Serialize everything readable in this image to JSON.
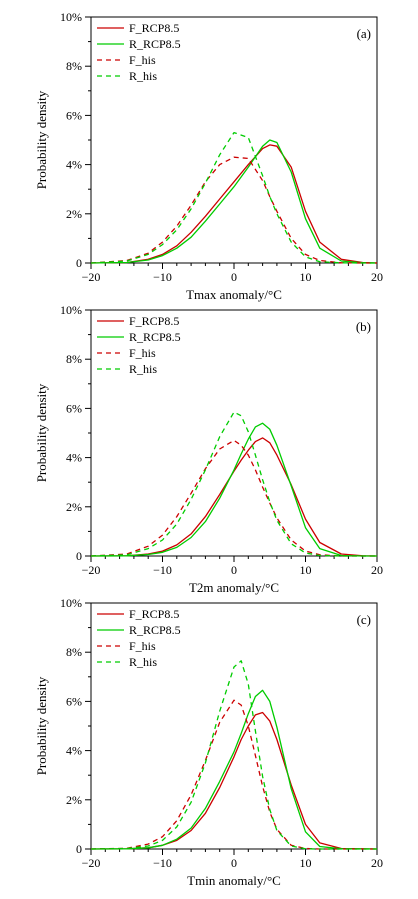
{
  "chart_data": [
    {
      "type": "line",
      "panel_label": "(a)",
      "xlabel": "Tmax anomaly/°C",
      "ylabel": "Probability density",
      "xlim": [
        -20,
        20
      ],
      "ylim": [
        0,
        10
      ],
      "x_ticks": [
        -20,
        -10,
        0,
        10,
        20
      ],
      "x_tick_labels": [
        "−20",
        "−10",
        "0",
        "10",
        "20"
      ],
      "y_ticks": [
        0,
        2,
        4,
        6,
        8,
        10
      ],
      "y_tick_labels": [
        "0",
        "2%",
        "4%",
        "6%",
        "8%",
        "10%"
      ],
      "legend_position": "top-left",
      "x": [
        -20,
        -15,
        -12,
        -10,
        -8,
        -6,
        -4,
        -2,
        0,
        2,
        4,
        5,
        6,
        8,
        10,
        12,
        15,
        18,
        20
      ],
      "series": [
        {
          "name": "F_RCP8.5",
          "color": "#cc0000",
          "dash": "solid",
          "values": [
            0,
            0.02,
            0.15,
            0.35,
            0.7,
            1.25,
            1.9,
            2.6,
            3.3,
            4.0,
            4.65,
            4.8,
            4.75,
            3.9,
            2.1,
            0.85,
            0.15,
            0.02,
            0
          ]
        },
        {
          "name": "R_RCP8.5",
          "color": "#00cc00",
          "dash": "solid",
          "values": [
            0,
            0.02,
            0.12,
            0.3,
            0.6,
            1.05,
            1.7,
            2.4,
            3.1,
            3.9,
            4.75,
            5.0,
            4.9,
            3.7,
            1.8,
            0.6,
            0.08,
            0.01,
            0
          ]
        },
        {
          "name": "F_his",
          "color": "#cc0000",
          "dash": "dashed",
          "values": [
            0,
            0.1,
            0.4,
            0.85,
            1.5,
            2.35,
            3.3,
            4.0,
            4.3,
            4.25,
            3.35,
            2.7,
            2.1,
            1.0,
            0.35,
            0.1,
            0.01,
            0,
            0
          ]
        },
        {
          "name": "R_his",
          "color": "#00cc00",
          "dash": "dashed",
          "values": [
            0,
            0.08,
            0.35,
            0.75,
            1.35,
            2.2,
            3.25,
            4.4,
            5.3,
            5.1,
            3.55,
            2.7,
            2.0,
            0.85,
            0.25,
            0.05,
            0.01,
            0,
            0
          ]
        }
      ]
    },
    {
      "type": "line",
      "panel_label": "(b)",
      "xlabel": "T2m anomaly/°C",
      "ylabel": "Probability density",
      "xlim": [
        -20,
        20
      ],
      "ylim": [
        0,
        10
      ],
      "x_ticks": [
        -20,
        -10,
        0,
        10,
        20
      ],
      "x_tick_labels": [
        "−20",
        "−10",
        "0",
        "10",
        "20"
      ],
      "y_ticks": [
        0,
        2,
        4,
        6,
        8,
        10
      ],
      "y_tick_labels": [
        "0",
        "2%",
        "4%",
        "6%",
        "8%",
        "10%"
      ],
      "legend_position": "top-left",
      "x": [
        -20,
        -15,
        -12,
        -10,
        -8,
        -6,
        -4,
        -2,
        0,
        1,
        2,
        3,
        4,
        5,
        6,
        8,
        10,
        12,
        15,
        18,
        20
      ],
      "series": [
        {
          "name": "F_RCP8.5",
          "color": "#cc0000",
          "dash": "solid",
          "values": [
            0,
            0.01,
            0.08,
            0.2,
            0.45,
            0.9,
            1.6,
            2.5,
            3.45,
            3.9,
            4.3,
            4.65,
            4.8,
            4.6,
            4.1,
            2.9,
            1.5,
            0.55,
            0.08,
            0.01,
            0
          ]
        },
        {
          "name": "R_RCP8.5",
          "color": "#00cc00",
          "dash": "solid",
          "values": [
            0,
            0.01,
            0.06,
            0.15,
            0.35,
            0.75,
            1.4,
            2.35,
            3.5,
            4.15,
            4.75,
            5.25,
            5.4,
            5.15,
            4.5,
            2.85,
            1.15,
            0.3,
            0.02,
            0,
            0
          ]
        },
        {
          "name": "F_his",
          "color": "#cc0000",
          "dash": "dashed",
          "values": [
            0,
            0.08,
            0.4,
            0.85,
            1.6,
            2.55,
            3.55,
            4.35,
            4.7,
            4.5,
            4.1,
            3.5,
            2.8,
            2.15,
            1.55,
            0.65,
            0.2,
            0.05,
            0,
            0,
            0
          ]
        },
        {
          "name": "R_his",
          "color": "#00cc00",
          "dash": "dashed",
          "values": [
            0,
            0.05,
            0.3,
            0.65,
            1.3,
            2.3,
            3.5,
            4.85,
            5.85,
            5.7,
            5.05,
            4.1,
            3.1,
            2.2,
            1.45,
            0.5,
            0.12,
            0.02,
            0,
            0,
            0
          ]
        }
      ]
    },
    {
      "type": "line",
      "panel_label": "(c)",
      "xlabel": "Tmin anomaly/°C",
      "ylabel": "Probability density",
      "xlim": [
        -20,
        20
      ],
      "ylim": [
        0,
        10
      ],
      "x_ticks": [
        -20,
        -10,
        0,
        10,
        20
      ],
      "x_tick_labels": [
        "−20",
        "−10",
        "0",
        "10",
        "20"
      ],
      "y_ticks": [
        0,
        2,
        4,
        6,
        8,
        10
      ],
      "y_tick_labels": [
        "0",
        "2%",
        "4%",
        "6%",
        "8%",
        "10%"
      ],
      "legend_position": "top-left",
      "x": [
        -20,
        -15,
        -12,
        -10,
        -8,
        -6,
        -4,
        -2,
        0,
        1,
        2,
        3,
        4,
        5,
        6,
        8,
        10,
        12,
        15,
        20
      ],
      "series": [
        {
          "name": "F_RCP8.5",
          "color": "#cc0000",
          "dash": "solid",
          "values": [
            0,
            0.01,
            0.05,
            0.15,
            0.35,
            0.75,
            1.45,
            2.5,
            3.75,
            4.45,
            5.0,
            5.45,
            5.55,
            5.2,
            4.45,
            2.6,
            1.0,
            0.25,
            0.02,
            0
          ]
        },
        {
          "name": "R_RCP8.5",
          "color": "#00cc00",
          "dash": "solid",
          "values": [
            0,
            0.01,
            0.05,
            0.15,
            0.4,
            0.85,
            1.65,
            2.75,
            3.95,
            4.7,
            5.5,
            6.2,
            6.45,
            6.0,
            4.95,
            2.45,
            0.7,
            0.1,
            0.01,
            0
          ]
        },
        {
          "name": "F_his",
          "color": "#cc0000",
          "dash": "dashed",
          "values": [
            0,
            0.03,
            0.2,
            0.5,
            1.15,
            2.2,
            3.6,
            5.15,
            6.05,
            5.85,
            5.0,
            3.8,
            2.55,
            1.5,
            0.8,
            0.15,
            0.02,
            0,
            0,
            0
          ]
        },
        {
          "name": "R_his",
          "color": "#00cc00",
          "dash": "dashed",
          "values": [
            0,
            0.02,
            0.12,
            0.35,
            0.9,
            1.9,
            3.5,
            5.6,
            7.4,
            7.65,
            6.7,
            4.8,
            2.95,
            1.6,
            0.75,
            0.12,
            0.01,
            0,
            0,
            0
          ]
        }
      ]
    }
  ]
}
